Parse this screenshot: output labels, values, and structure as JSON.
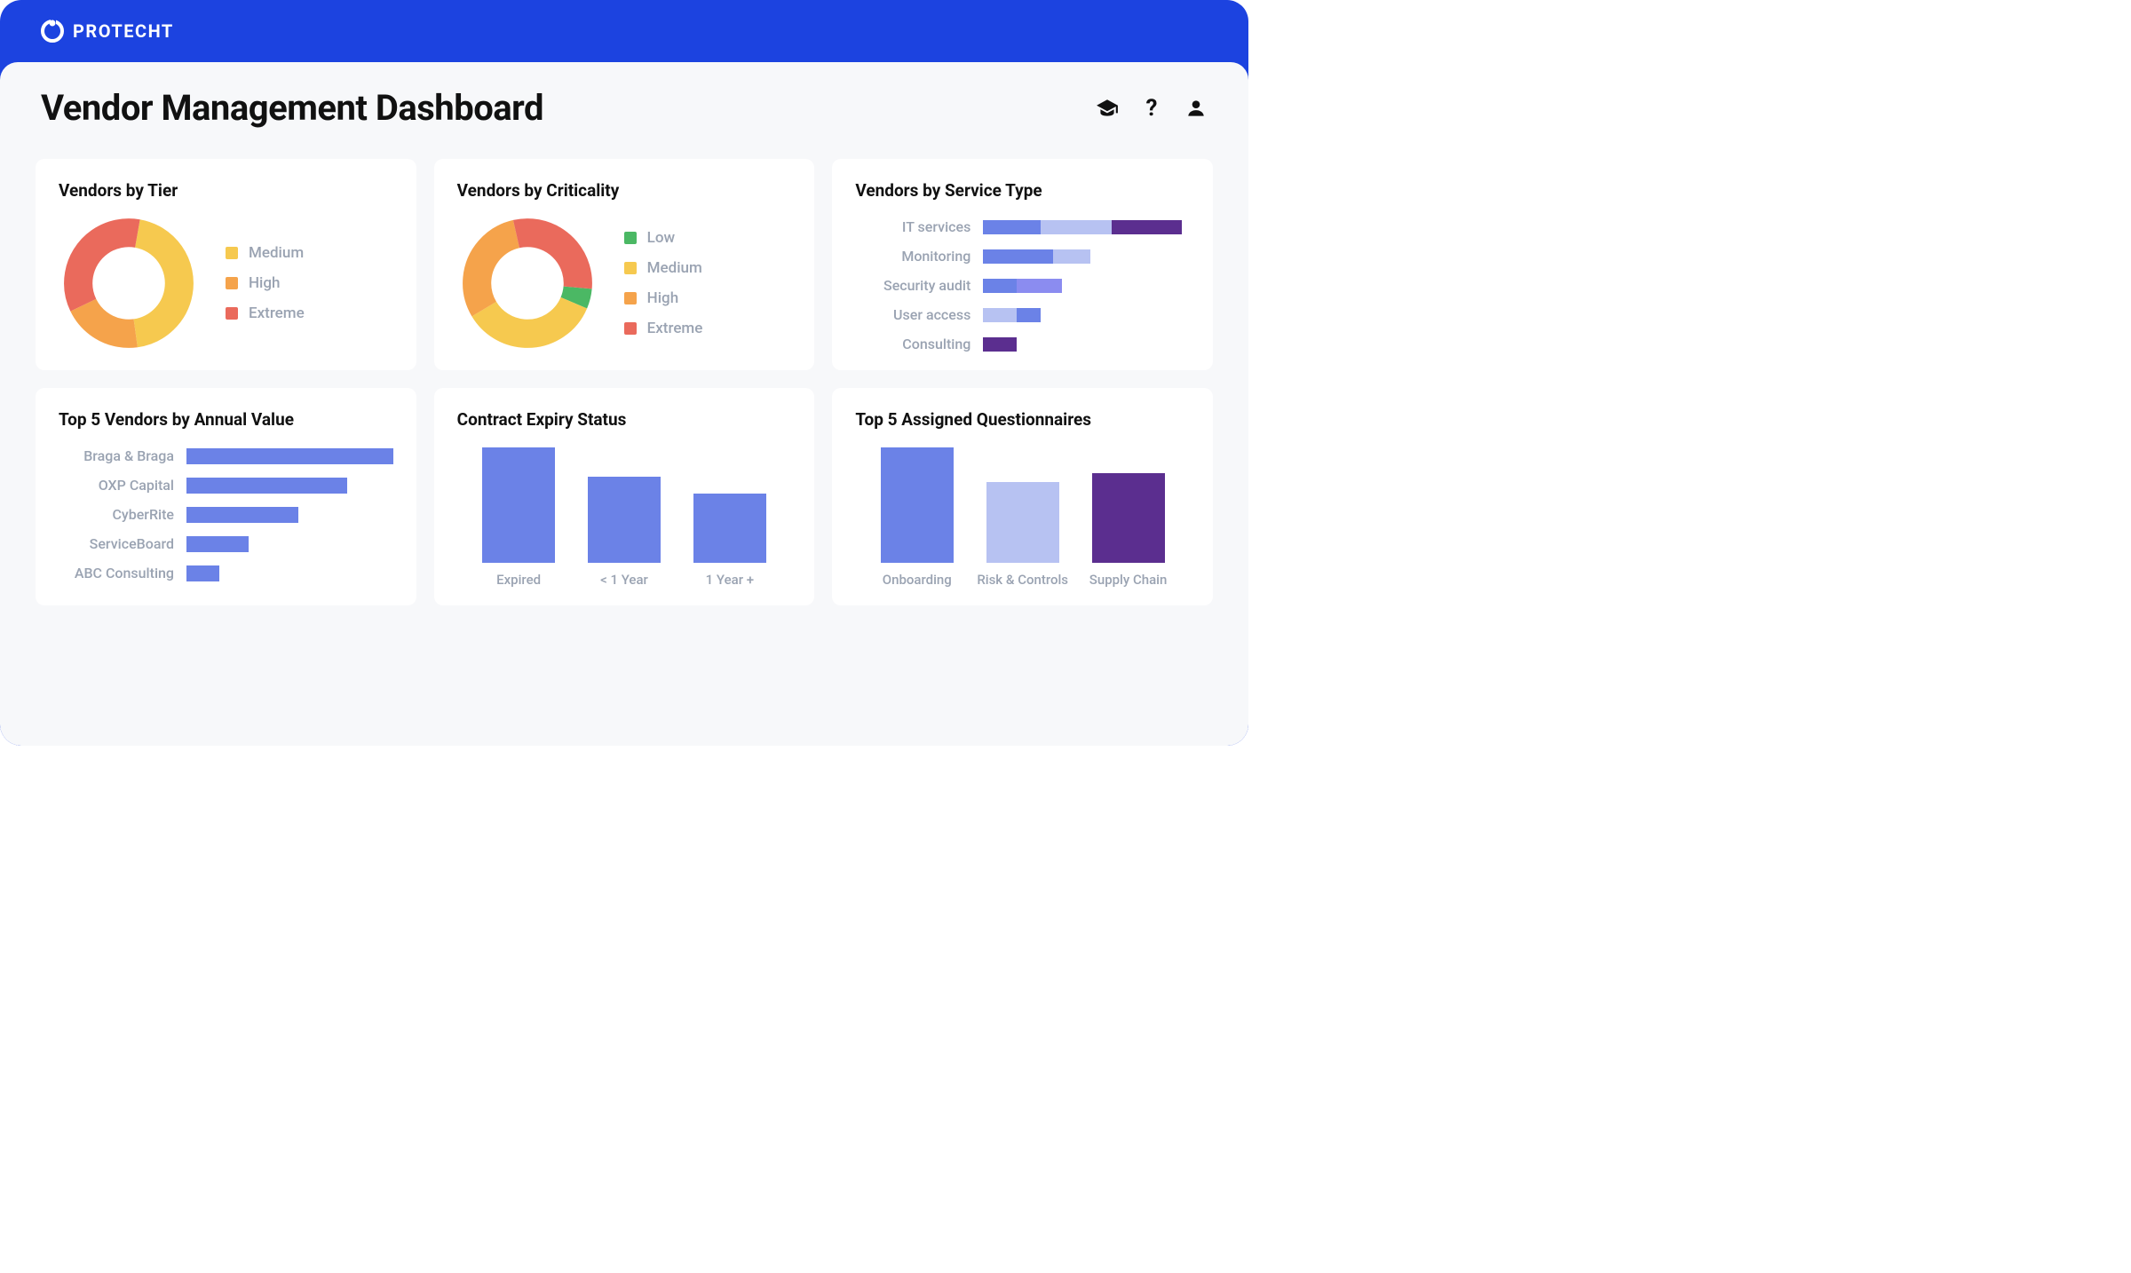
{
  "brand": {
    "name": "PROTECHT"
  },
  "page": {
    "title": "Vendor Management Dashboard"
  },
  "colors": {
    "header_bg": "#1c43e0",
    "panel_bg": "#f7f8fa",
    "card_bg": "#ffffff",
    "text_primary": "#111111",
    "text_muted": "#9aa3b2"
  },
  "cards": {
    "vendors_by_tier": {
      "title": "Vendors by Tier",
      "type": "donut",
      "slices": [
        {
          "label": "Medium",
          "color": "#f6c94f",
          "value": 45
        },
        {
          "label": "High",
          "color": "#f5a34b",
          "value": 20
        },
        {
          "label": "Extreme",
          "color": "#ea6a5c",
          "value": 35
        }
      ]
    },
    "vendors_by_criticality": {
      "title": "Vendors by Criticality",
      "type": "donut",
      "slices": [
        {
          "label": "Low",
          "color": "#4bb864",
          "value": 5
        },
        {
          "label": "Medium",
          "color": "#f6c94f",
          "value": 35
        },
        {
          "label": "High",
          "color": "#f5a34b",
          "value": 30
        },
        {
          "label": "Extreme",
          "color": "#ea6a5c",
          "value": 30
        }
      ]
    },
    "vendors_by_service_type": {
      "title": "Vendors by Service Type",
      "type": "stacked-hbar",
      "max": 100,
      "rows": [
        {
          "label": "IT services",
          "segments": [
            {
              "value": 28,
              "color": "#6b82e7"
            },
            {
              "value": 34,
              "color": "#b7c2f2"
            },
            {
              "value": 34,
              "color": "#5b2e8f"
            }
          ]
        },
        {
          "label": "Monitoring",
          "segments": [
            {
              "value": 34,
              "color": "#6b82e7"
            },
            {
              "value": 18,
              "color": "#b7c2f2"
            }
          ]
        },
        {
          "label": "Security audit",
          "segments": [
            {
              "value": 16,
              "color": "#6b82e7"
            },
            {
              "value": 22,
              "color": "#8b8cf0"
            }
          ]
        },
        {
          "label": "User access",
          "segments": [
            {
              "value": 16,
              "color": "#b7c2f2"
            },
            {
              "value": 12,
              "color": "#6b82e7"
            }
          ]
        },
        {
          "label": "Consulting",
          "segments": [
            {
              "value": 16,
              "color": "#5b2e8f"
            }
          ]
        }
      ]
    },
    "top5_vendors_value": {
      "title": "Top 5 Vendors by Annual Value",
      "type": "hbar",
      "max": 100,
      "bar_color": "#6b82e7",
      "rows": [
        {
          "label": "Braga & Braga",
          "value": 100
        },
        {
          "label": "OXP Capital",
          "value": 78
        },
        {
          "label": "CyberRite",
          "value": 54
        },
        {
          "label": "ServiceBoard",
          "value": 30
        },
        {
          "label": "ABC Consulting",
          "value": 16
        }
      ]
    },
    "contract_expiry": {
      "title": "Contract Expiry Status",
      "type": "vbar",
      "max": 100,
      "bar_color": "#6b82e7",
      "bars": [
        {
          "label": "Expired",
          "value": 100
        },
        {
          "label": "< 1 Year",
          "value": 75
        },
        {
          "label": "1 Year +",
          "value": 60
        }
      ]
    },
    "top5_questionnaires": {
      "title": "Top 5 Assigned Questionnaires",
      "type": "vbar",
      "max": 100,
      "bars": [
        {
          "label": "Onboarding",
          "value": 100,
          "color": "#6b82e7"
        },
        {
          "label": "Risk & Controls",
          "value": 70,
          "color": "#b7c2f2"
        },
        {
          "label": "Supply Chain",
          "value": 78,
          "color": "#5b2e8f"
        }
      ]
    }
  }
}
